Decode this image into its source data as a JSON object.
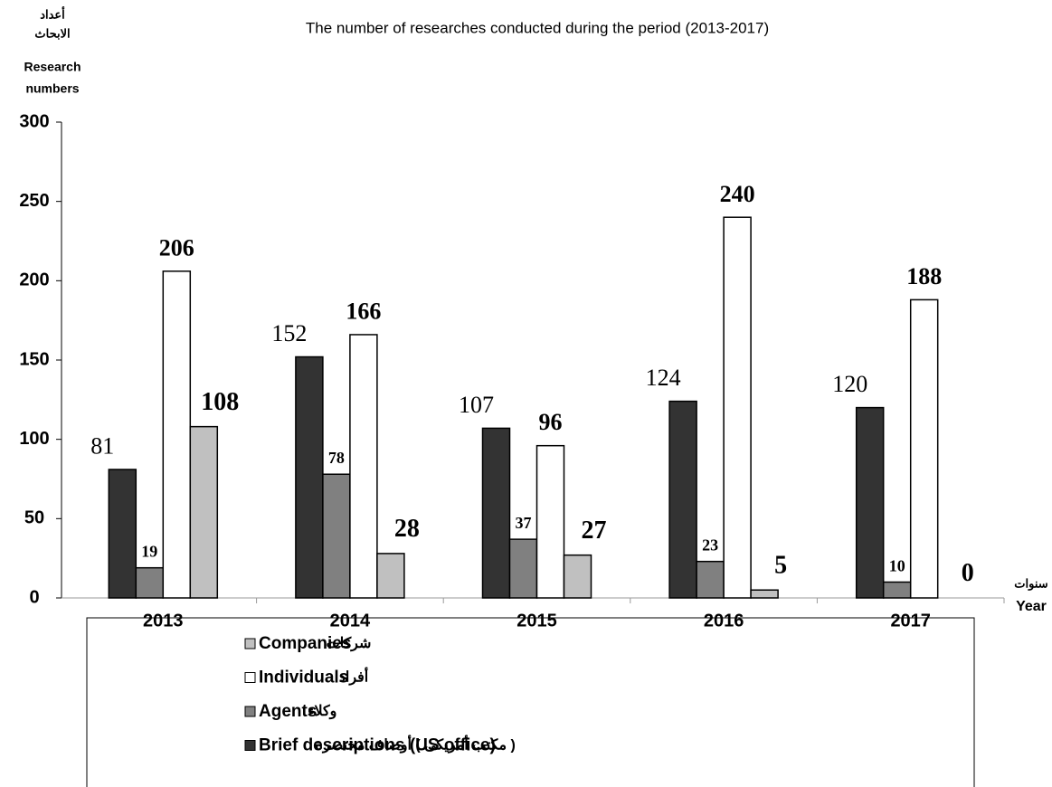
{
  "chart_data": {
    "type": "bar",
    "title": "The number of researches conducted during the period (2013-2017)",
    "y_label": [
      "أعداد",
      "الابحاث",
      "Research",
      "numbers"
    ],
    "x_label": [
      "سنوات",
      "Year"
    ],
    "categories": [
      "2013",
      "2014",
      "2015",
      "2016",
      "2017"
    ],
    "series": [
      {
        "name": "Brief descriptions (US office)",
        "name_ar": "( مكتب أمريكى ) أوصاف مختصرة",
        "color": "#333333",
        "values": [
          81,
          152,
          107,
          124,
          120
        ]
      },
      {
        "name": "Agents",
        "name_ar": "وكلاء",
        "color": "#808080",
        "values": [
          19,
          78,
          37,
          23,
          10
        ]
      },
      {
        "name": "Individuals",
        "name_ar": "أفراد",
        "color": "#ffffff",
        "values": [
          206,
          166,
          96,
          240,
          188
        ]
      },
      {
        "name": "Companies",
        "name_ar": "شركات",
        "color": "#c0c0c0",
        "values": [
          108,
          28,
          27,
          5,
          0
        ]
      }
    ],
    "ylim": [
      0,
      300
    ],
    "yticks": [
      0,
      50,
      100,
      150,
      200,
      250,
      300
    ],
    "legend": "bottom"
  }
}
